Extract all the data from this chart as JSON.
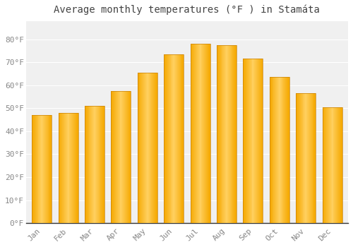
{
  "title": "Average monthly temperatures (°F ) in Stamáta",
  "months": [
    "Jan",
    "Feb",
    "Mar",
    "Apr",
    "May",
    "Jun",
    "Jul",
    "Aug",
    "Sep",
    "Oct",
    "Nov",
    "Dec"
  ],
  "values": [
    47,
    48,
    51,
    57.5,
    65.5,
    73.5,
    78,
    77.5,
    71.5,
    63.5,
    56.5,
    50.5
  ],
  "bar_color_center": "#FFD060",
  "bar_color_edge": "#F5A800",
  "background_color": "#FFFFFF",
  "plot_bg_color": "#F0F0F0",
  "grid_color": "#FFFFFF",
  "tick_color": "#888888",
  "axis_color": "#333333",
  "ylim": [
    0,
    88
  ],
  "yticks": [
    0,
    10,
    20,
    30,
    40,
    50,
    60,
    70,
    80
  ],
  "title_fontsize": 10,
  "tick_fontsize": 8,
  "bar_width": 0.75
}
